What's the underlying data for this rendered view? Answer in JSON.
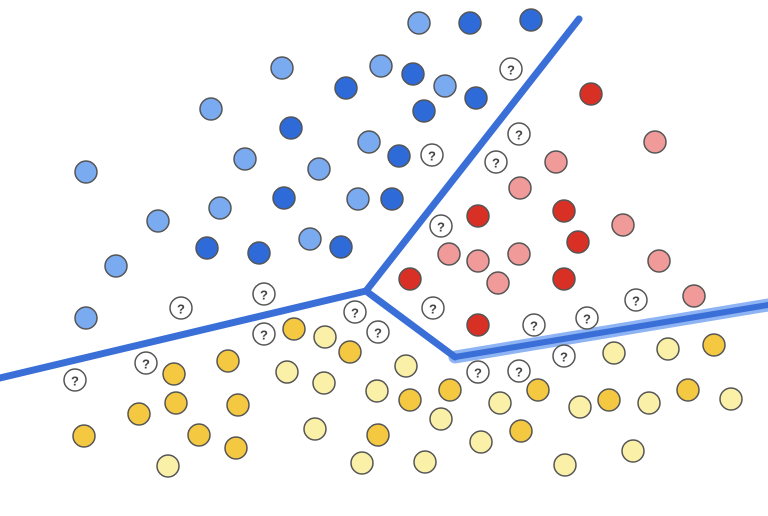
{
  "question_marks": [
    "?",
    "?",
    "?",
    "?",
    "?",
    "?",
    "?",
    "?",
    "?",
    "?",
    "?",
    "?",
    "?",
    "?",
    "?",
    "?",
    "?",
    "?",
    "?"
  ]
}
